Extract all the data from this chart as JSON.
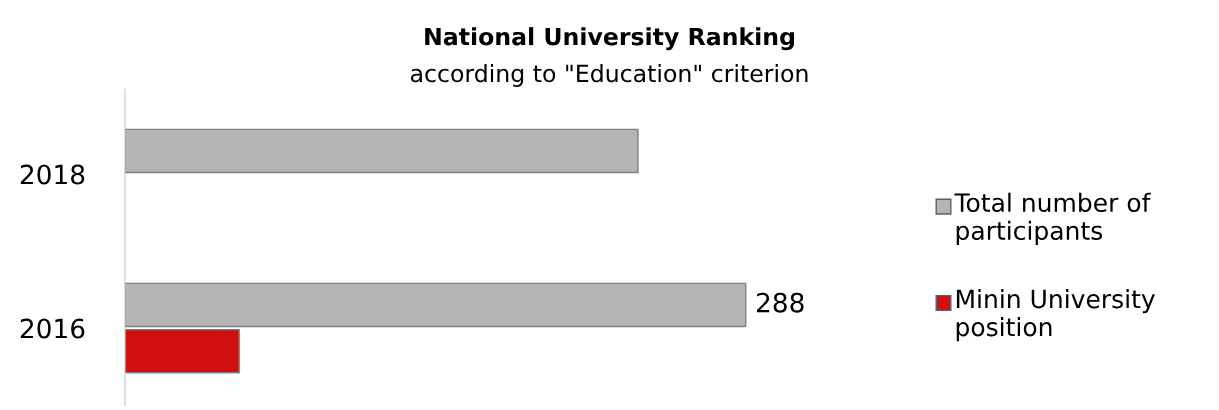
{
  "chart_data": {
    "type": "bar",
    "orientation": "horizontal",
    "title": "National University Ranking",
    "subtitle": "according to \"Education\" criterion",
    "categories": [
      "2018",
      "2016"
    ],
    "series": [
      {
        "name": "Total number of participants",
        "color": "#b4b4b4",
        "values": [
          238,
          288
        ],
        "value_labels": [
          null,
          "288"
        ]
      },
      {
        "name": "Minin University position",
        "color": "#d01010",
        "values": [
          null,
          53
        ],
        "value_labels": [
          null,
          null
        ]
      }
    ],
    "legend": "right",
    "grid": false
  }
}
